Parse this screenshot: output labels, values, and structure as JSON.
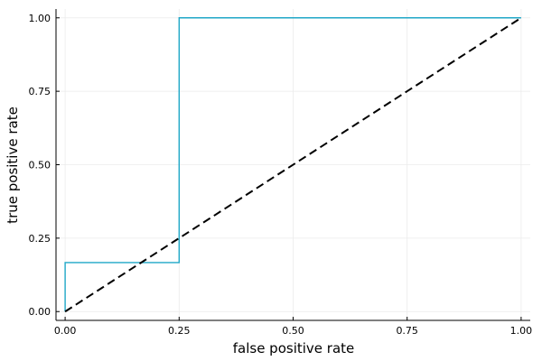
{
  "chart_data": {
    "type": "line",
    "xlabel": "false positive rate",
    "ylabel": "true positive rate",
    "xlim": [
      -0.02,
      1.02
    ],
    "ylim": [
      -0.03,
      1.03
    ],
    "x_ticks": [
      0.0,
      0.25,
      0.5,
      0.75,
      1.0
    ],
    "y_ticks": [
      0.0,
      0.25,
      0.5,
      0.75,
      1.0
    ],
    "x_tick_labels": [
      "0.00",
      "0.25",
      "0.50",
      "0.75",
      "1.00"
    ],
    "y_tick_labels": [
      "0.00",
      "0.25",
      "0.50",
      "0.75",
      "1.00"
    ],
    "grid": true,
    "legend": "none",
    "series": [
      {
        "style": "step",
        "color": "#1fa7c7",
        "points": [
          [
            0.0,
            0.0
          ],
          [
            0.0,
            0.1667
          ],
          [
            0.25,
            0.1667
          ],
          [
            0.25,
            1.0
          ],
          [
            1.0,
            1.0
          ]
        ]
      },
      {
        "style": "dashed",
        "color": "#000000",
        "points": [
          [
            0.0,
            0.0
          ],
          [
            1.0,
            1.0
          ]
        ]
      }
    ]
  }
}
